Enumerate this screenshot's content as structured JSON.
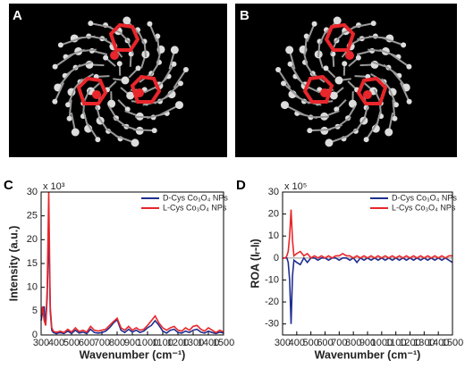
{
  "panel_labels": [
    "A",
    "B",
    "C",
    "D"
  ],
  "chart_data": [
    {
      "type": "line",
      "xlabel": "Wavenumber (cm⁻¹)",
      "ylabel": "Intensity (a.u.)",
      "y_multiplier": "x 10³",
      "x": [
        300,
        310,
        320,
        330,
        340,
        350,
        360,
        370,
        380,
        400,
        425,
        450,
        475,
        500,
        525,
        550,
        575,
        600,
        625,
        650,
        675,
        700,
        725,
        750,
        775,
        800,
        825,
        850,
        875,
        900,
        925,
        950,
        975,
        1000,
        1025,
        1050,
        1075,
        1100,
        1125,
        1150,
        1175,
        1200,
        1225,
        1250,
        1275,
        1300,
        1325,
        1350,
        1375,
        1400,
        1425,
        1450,
        1475,
        1500
      ],
      "series": [
        {
          "name": "D-Cys Co₃O₄ NPs",
          "color": "#1f2f8f",
          "values": [
            3,
            5,
            6,
            2,
            8,
            23,
            5,
            1,
            0.5,
            0.3,
            0.5,
            0.3,
            0.8,
            0.3,
            1,
            0.4,
            0.6,
            0.3,
            1.2,
            0.5,
            0.4,
            0.5,
            0.8,
            1.5,
            2.5,
            3.2,
            1,
            0.5,
            1.2,
            0.6,
            1,
            0.5,
            0.8,
            1.5,
            2,
            3,
            2,
            0.8,
            0.4,
            1,
            1.2,
            0.5,
            0.4,
            0.8,
            0.5,
            1,
            1.2,
            0.6,
            0.4,
            0.8,
            0.5,
            0.3,
            0.6,
            0.4
          ]
        },
        {
          "name": "L-Cys Co₃O₄ NPs",
          "color": "#e8262b",
          "values": [
            4,
            6,
            3,
            2,
            10,
            30,
            6,
            1.5,
            0.8,
            0.5,
            0.8,
            0.5,
            1.2,
            0.6,
            1.5,
            0.7,
            1,
            0.6,
            1.8,
            1,
            0.8,
            1,
            1.2,
            2,
            2.8,
            3.5,
            1.5,
            1,
            1.8,
            1,
            1.5,
            1,
            1.2,
            2,
            3,
            4,
            2.5,
            1.5,
            1,
            1.5,
            1.8,
            1,
            0.8,
            1.5,
            1,
            1.8,
            2,
            1.2,
            0.8,
            1.5,
            1,
            0.5,
            1,
            0.6
          ]
        }
      ],
      "xlim": [
        300,
        1500
      ],
      "xticks": [
        300,
        400,
        500,
        600,
        700,
        800,
        900,
        1000,
        1100,
        1200,
        1300,
        1400,
        1500
      ],
      "ylim": [
        0,
        30
      ],
      "yticks": [
        0,
        5,
        10,
        15,
        20,
        25,
        30
      ],
      "legend": "upper right",
      "zero_line": false
    },
    {
      "type": "line",
      "xlabel": "Wavenumber (cm⁻¹)",
      "ylabel": "ROA (Iᵣ-Iₗ)",
      "y_multiplier": "x 10⁵",
      "x": [
        300,
        310,
        320,
        330,
        340,
        350,
        360,
        370,
        380,
        400,
        425,
        450,
        475,
        500,
        525,
        550,
        575,
        600,
        625,
        650,
        675,
        700,
        725,
        750,
        775,
        800,
        825,
        850,
        875,
        900,
        925,
        950,
        975,
        1000,
        1025,
        1050,
        1075,
        1100,
        1125,
        1150,
        1175,
        1200,
        1225,
        1250,
        1275,
        1300,
        1325,
        1350,
        1375,
        1400,
        1425,
        1450,
        1475,
        1500
      ],
      "series": [
        {
          "name": "D-Cys Co₃O₄ NPs",
          "color": "#1f2f8f",
          "values": [
            0,
            0,
            0,
            0,
            -2,
            -10,
            -30,
            -8,
            -1,
            -2,
            -3,
            0,
            -2,
            0,
            0,
            -1,
            0,
            0,
            -1,
            0,
            0,
            -1,
            0,
            0,
            -1,
            0,
            -2,
            0,
            -1,
            0,
            -1,
            0,
            -1,
            0,
            -1,
            0,
            -1,
            0,
            -1,
            0,
            -1,
            0,
            -1,
            0,
            -1,
            0,
            -1,
            0,
            -1,
            0,
            -1,
            0,
            -1,
            -2
          ]
        },
        {
          "name": "L-Cys Co₃O₄ NPs",
          "color": "#e8262b",
          "values": [
            0,
            0,
            0,
            1,
            3,
            10,
            22,
            8,
            1,
            2,
            3,
            1,
            2,
            0,
            1,
            0,
            1,
            0,
            1,
            0,
            1,
            1,
            2,
            1,
            1,
            0,
            1,
            0,
            1,
            0,
            1,
            0,
            1,
            0,
            1,
            0,
            1,
            0,
            1,
            0,
            1,
            0,
            1,
            0,
            1,
            0,
            1,
            0,
            1,
            0,
            1,
            0,
            1,
            1
          ]
        }
      ],
      "xlim": [
        300,
        1500
      ],
      "xticks": [
        300,
        400,
        500,
        600,
        700,
        800,
        900,
        1000,
        1100,
        1200,
        1300,
        1400,
        1500
      ],
      "ylim": [
        -35,
        30
      ],
      "yticks": [
        -30,
        -20,
        -10,
        0,
        10,
        20,
        30
      ],
      "legend": "upper right",
      "zero_line": true
    }
  ]
}
